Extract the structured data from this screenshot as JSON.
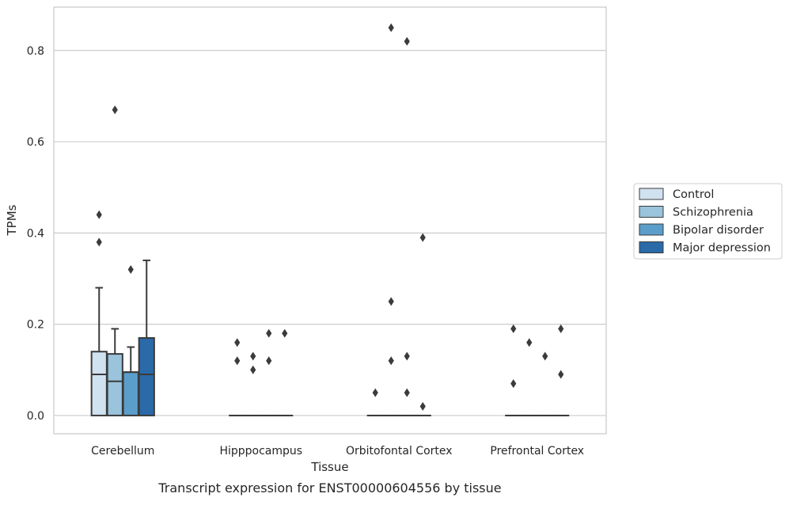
{
  "chart_data": {
    "type": "box",
    "title": "Transcript expression for ENST00000604556 by tissue",
    "xlabel": "Tissue",
    "ylabel": "TPMs",
    "ylim": [
      -0.04,
      0.895
    ],
    "yticks": [
      0.0,
      0.2,
      0.4,
      0.6,
      0.8
    ],
    "ytick_labels": [
      "0.0",
      "0.2",
      "0.4",
      "0.6",
      "0.8"
    ],
    "grid": true,
    "legend_position": "right",
    "categories": [
      "Cerebellum",
      "Hipppocampus",
      "Orbitofontal Cortex",
      "Prefrontal Cortex"
    ],
    "series": [
      {
        "name": "Control",
        "color": "#d0e1f0",
        "boxes": [
          {
            "q1": 0.0,
            "median": 0.09,
            "q3": 0.14,
            "whisker_low": 0.0,
            "whisker_high": 0.28,
            "outliers": [
              0.38,
              0.44
            ]
          },
          {
            "q1": 0.0,
            "median": 0.0,
            "q3": 0.0,
            "whisker_low": 0.0,
            "whisker_high": 0.0,
            "outliers": [
              0.12,
              0.16
            ]
          },
          {
            "q1": 0.0,
            "median": 0.0,
            "q3": 0.0,
            "whisker_low": 0.0,
            "whisker_high": 0.0,
            "outliers": [
              0.05
            ]
          },
          {
            "q1": 0.0,
            "median": 0.0,
            "q3": 0.0,
            "whisker_low": 0.0,
            "whisker_high": 0.0,
            "outliers": [
              0.07,
              0.19
            ]
          }
        ]
      },
      {
        "name": "Schizophrenia",
        "color": "#9ac3dc",
        "boxes": [
          {
            "q1": 0.0,
            "median": 0.075,
            "q3": 0.135,
            "whisker_low": 0.0,
            "whisker_high": 0.19,
            "outliers": [
              0.67
            ]
          },
          {
            "q1": 0.0,
            "median": 0.0,
            "q3": 0.0,
            "whisker_low": 0.0,
            "whisker_high": 0.0,
            "outliers": [
              0.1,
              0.13
            ]
          },
          {
            "q1": 0.0,
            "median": 0.0,
            "q3": 0.0,
            "whisker_low": 0.0,
            "whisker_high": 0.0,
            "outliers": [
              0.12,
              0.25,
              0.85
            ]
          },
          {
            "q1": 0.0,
            "median": 0.0,
            "q3": 0.0,
            "whisker_low": 0.0,
            "whisker_high": 0.0,
            "outliers": [
              0.16
            ]
          }
        ]
      },
      {
        "name": "Bipolar disorder",
        "color": "#5b9ecb",
        "boxes": [
          {
            "q1": 0.0,
            "median": 0.095,
            "q3": 0.095,
            "whisker_low": 0.0,
            "whisker_high": 0.15,
            "outliers": [
              0.32
            ]
          },
          {
            "q1": 0.0,
            "median": 0.0,
            "q3": 0.0,
            "whisker_low": 0.0,
            "whisker_high": 0.0,
            "outliers": [
              0.12,
              0.18
            ]
          },
          {
            "q1": 0.0,
            "median": 0.0,
            "q3": 0.0,
            "whisker_low": 0.0,
            "whisker_high": 0.0,
            "outliers": [
              0.05,
              0.13,
              0.82
            ]
          },
          {
            "q1": 0.0,
            "median": 0.0,
            "q3": 0.0,
            "whisker_low": 0.0,
            "whisker_high": 0.0,
            "outliers": [
              0.13
            ]
          }
        ]
      },
      {
        "name": "Major depression",
        "color": "#2a6aa8",
        "boxes": [
          {
            "q1": 0.0,
            "median": 0.09,
            "q3": 0.17,
            "whisker_low": 0.0,
            "whisker_high": 0.34,
            "outliers": []
          },
          {
            "q1": 0.0,
            "median": 0.0,
            "q3": 0.0,
            "whisker_low": 0.0,
            "whisker_high": 0.0,
            "outliers": [
              0.18
            ]
          },
          {
            "q1": 0.0,
            "median": 0.0,
            "q3": 0.0,
            "whisker_low": 0.0,
            "whisker_high": 0.0,
            "outliers": [
              0.02,
              0.39
            ]
          },
          {
            "q1": 0.0,
            "median": 0.0,
            "q3": 0.0,
            "whisker_low": 0.0,
            "whisker_high": 0.0,
            "outliers": [
              0.09,
              0.19
            ]
          }
        ]
      }
    ]
  },
  "colors": {
    "edge": "#3b3b3b",
    "grid": "#cccccc",
    "frame": "#c8c8c8",
    "text": "#262626"
  }
}
